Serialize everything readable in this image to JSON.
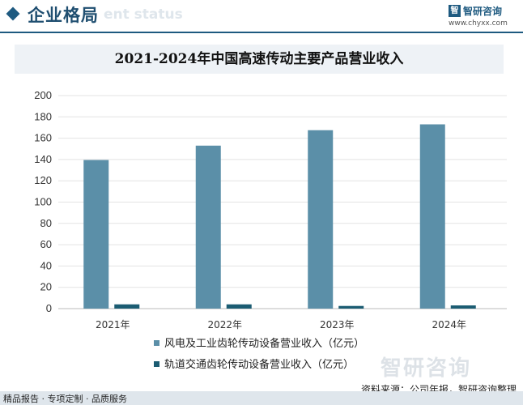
{
  "header": {
    "title": "企业格局",
    "subtitle": "ent status",
    "logo_mark": "智",
    "logo_name": "智研咨询",
    "logo_url": "www.chyxx.com"
  },
  "watermark": {
    "brand": "智研咨询"
  },
  "source": "资料来源：公司年报，智研咨询整理",
  "footer": {
    "text": "精品报告 · 专项定制 · 品质服务"
  },
  "colors": {
    "series1": "#5b8fa8",
    "series2": "#1b5c72",
    "header_accent": "#1e5a80"
  },
  "chart_data": {
    "type": "bar",
    "title": "2021-2024年中国高速传动主要产品营业收入",
    "categories": [
      "2021年",
      "2022年",
      "2023年",
      "2024年"
    ],
    "series": [
      {
        "name": "风电及工业齿轮传动设备营业收入（亿元）",
        "values": [
          139.5,
          153,
          167.5,
          173
        ]
      },
      {
        "name": "轨道交通齿轮传动设备营业收入（亿元）",
        "values": [
          4,
          4,
          2.5,
          3
        ]
      }
    ],
    "ylim": [
      0,
      200
    ],
    "yticks": [
      0,
      20,
      40,
      60,
      80,
      100,
      120,
      140,
      160,
      180,
      200
    ],
    "grid": true,
    "legend_position": "bottom"
  }
}
